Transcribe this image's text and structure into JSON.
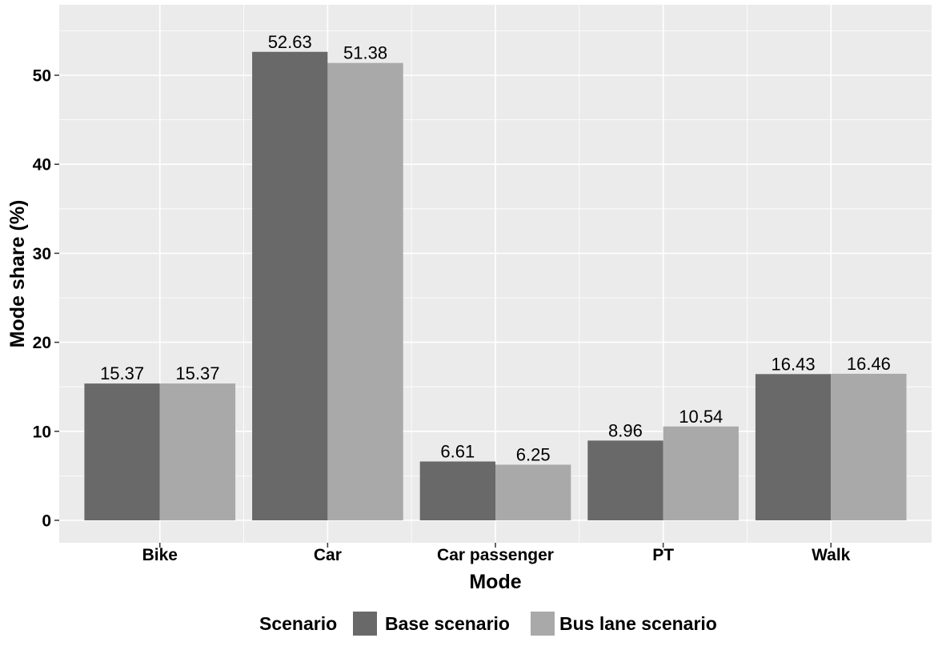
{
  "chart_data": {
    "type": "bar",
    "title": "",
    "xlabel": "Mode",
    "ylabel": "Mode share (%)",
    "categories": [
      "Bike",
      "Car",
      "Car passenger",
      "PT",
      "Walk"
    ],
    "series": [
      {
        "name": "Base scenario",
        "color": "#696969",
        "values": [
          15.37,
          52.63,
          6.61,
          8.96,
          16.43
        ]
      },
      {
        "name": "Bus lane scenario",
        "color": "#a9a9a9",
        "values": [
          15.37,
          51.38,
          6.25,
          10.54,
          16.46
        ]
      }
    ],
    "ylim": [
      0,
      56
    ],
    "yticks": [
      0,
      10,
      20,
      30,
      40,
      50
    ],
    "grid": true,
    "legend": {
      "title": "Scenario",
      "position": "bottom"
    },
    "panel_color": "#ebebeb",
    "grid_color": "#ffffff"
  }
}
